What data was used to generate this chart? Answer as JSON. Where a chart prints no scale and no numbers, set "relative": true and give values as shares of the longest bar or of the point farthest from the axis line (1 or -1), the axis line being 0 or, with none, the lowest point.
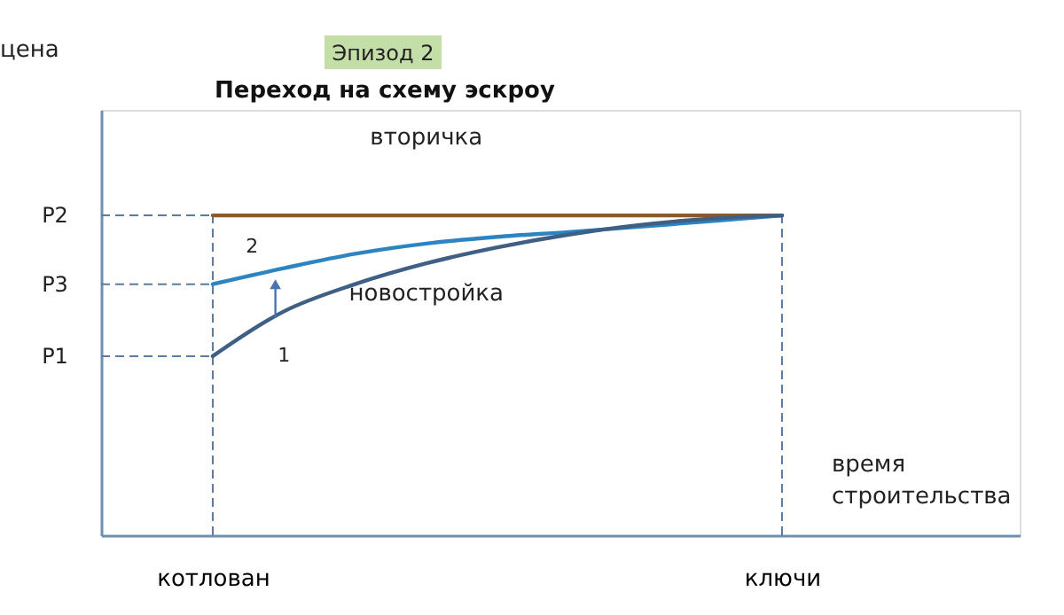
{
  "chart_data": {
    "type": "line",
    "relative": true,
    "title": "Переход на схему эскроу",
    "xlabel": "время строительства",
    "categories": [
      null,
      "котлован",
      null,
      null,
      null,
      null,
      null,
      null,
      null,
      "ключи",
      null,
      null,
      null
    ],
    "series": [
      {
        "name": "вторичка",
        "color": "#8b5a2b",
        "values": [
          null,
          1,
          1,
          1,
          1,
          1,
          1,
          1,
          1,
          1,
          null,
          null,
          null
        ]
      },
      {
        "color": "#2e84c0",
        "values": [
          null,
          0.785,
          0.835,
          0.88,
          0.912,
          0.933,
          0.948,
          0.965,
          0.982,
          1,
          null,
          null,
          null
        ]
      },
      {
        "name": "новостройка",
        "color": "#3f5f85",
        "values": [
          null,
          0.56,
          0.7,
          0.785,
          0.85,
          0.9,
          0.94,
          0.97,
          0.99,
          1,
          null,
          null,
          null
        ]
      }
    ],
    "ref_lines": [
      {
        "axis": "x",
        "value": "котлован",
        "color": "#5b7ba0",
        "line_style": "dashed"
      },
      {
        "axis": "x",
        "value": "ключи",
        "color": "#5b7ba0",
        "line_style": "dashed"
      },
      {
        "axis": "y",
        "value": 1,
        "label": "P2",
        "color": "#5b7ba0",
        "line_style": "dashed"
      },
      {
        "axis": "y",
        "value": 0.785,
        "label": "P3",
        "color": "#5b7ba0",
        "line_style": "dashed"
      },
      {
        "axis": "y",
        "value": 0.56,
        "label": "P1",
        "color": "#5b7ba0",
        "line_style": "dashed"
      }
    ],
    "annotations": [
      "Эпизод 2",
      "1",
      "2",
      "цена"
    ],
    "grid": false,
    "legend": false,
    "marker": "none",
    "line_style": "solid"
  }
}
